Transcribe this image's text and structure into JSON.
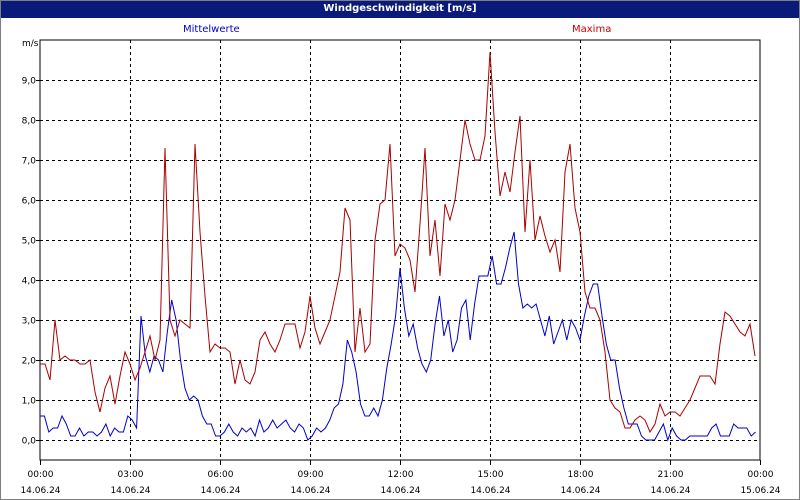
{
  "window": {
    "title": "Windgeschwindigkeit [m/s]"
  },
  "chart_data": {
    "type": "line",
    "title": "Windgeschwindigkeit [m/s]",
    "yunit": "m/s",
    "ylim": [
      -0.5,
      10.0
    ],
    "xlim": [
      0,
      24
    ],
    "grid": true,
    "legend_placement": "top",
    "yticks": [
      "0,0",
      "1,0",
      "2,0",
      "3,0",
      "4,0",
      "5,0",
      "6,0",
      "7,0",
      "8,0",
      "9,0"
    ],
    "xticks": [
      {
        "time": "00:00",
        "date": "14.06.24"
      },
      {
        "time": "03:00",
        "date": "14.06.24"
      },
      {
        "time": "06:00",
        "date": "14.06.24"
      },
      {
        "time": "09:00",
        "date": "14.06.24"
      },
      {
        "time": "12:00",
        "date": "14.06.24"
      },
      {
        "time": "15:00",
        "date": "14.06.24"
      },
      {
        "time": "18:00",
        "date": "14.06.24"
      },
      {
        "time": "21:00",
        "date": "14.06.24"
      },
      {
        "time": "00:00",
        "date": "15.06.24"
      }
    ],
    "x_hours": [
      0.0,
      0.2,
      0.4,
      0.6,
      0.8,
      1.0,
      1.2,
      1.4,
      1.6,
      1.8,
      2.0,
      2.2,
      2.4,
      2.6,
      2.8,
      3.0,
      3.2,
      3.4,
      3.6,
      3.8,
      4.0,
      4.2,
      4.4,
      4.6,
      4.8,
      5.0,
      5.2,
      5.4,
      5.6,
      5.8,
      6.0,
      6.2,
      6.4,
      6.6,
      6.8,
      7.0,
      7.2,
      7.4,
      7.6,
      7.8,
      8.0,
      8.2,
      8.4,
      8.6,
      8.8,
      9.0,
      9.2,
      9.4,
      9.6,
      9.8,
      10.0,
      10.2,
      10.4,
      10.6,
      10.8,
      11.0,
      11.2,
      11.4,
      11.6,
      11.8,
      12.0,
      12.2,
      12.4,
      12.6,
      12.8,
      13.0,
      13.2,
      13.4,
      13.6,
      13.8,
      14.0,
      14.2,
      14.4,
      14.6,
      14.8,
      15.0,
      15.2,
      15.4,
      15.6,
      15.8,
      16.0,
      16.2,
      16.4,
      16.6,
      16.8,
      17.0,
      17.2,
      17.4,
      17.6,
      17.8,
      18.0,
      18.2,
      18.4,
      18.6,
      18.8,
      19.0,
      19.2,
      19.4,
      19.6,
      19.8,
      20.0,
      20.2,
      20.4,
      20.6,
      20.8,
      21.0,
      21.2,
      21.4,
      21.6,
      21.8,
      22.0,
      22.2,
      22.4,
      22.6,
      22.8,
      23.0,
      23.2,
      23.4,
      23.6,
      23.8
    ],
    "series": [
      {
        "name": "Mittelwerte",
        "color": "#0000cc",
        "values": [
          0.6,
          0.6,
          0.2,
          0.3,
          0.3,
          0.6,
          0.4,
          0.1,
          0.1,
          0.3,
          0.1,
          0.2,
          0.2,
          0.1,
          0.2,
          0.4,
          0.1,
          0.3,
          0.2,
          0.2,
          0.6,
          0.5,
          0.3,
          3.1,
          2.1,
          1.7,
          2.1,
          2.0,
          1.7,
          2.7,
          3.5,
          3.0,
          2.0,
          1.3,
          1.0,
          1.1,
          1.0,
          0.6,
          0.4,
          0.4,
          0.1,
          0.1,
          0.2,
          0.4,
          0.2,
          0.1,
          0.3,
          0.2,
          0.3,
          0.1,
          0.5,
          0.2,
          0.3,
          0.5,
          0.3,
          0.4,
          0.5,
          0.3,
          0.2,
          0.4,
          0.3,
          0.0,
          0.1,
          0.3,
          0.2,
          0.3,
          0.5,
          0.8,
          0.9,
          1.4,
          2.5,
          2.2,
          1.7,
          0.9,
          0.6,
          0.6,
          0.8,
          0.6,
          1.0,
          1.8,
          2.4,
          3.1,
          4.3,
          3.3,
          2.6,
          2.9,
          2.3,
          1.9,
          1.7,
          2.0,
          2.9,
          3.6,
          2.6,
          3.0,
          2.2,
          2.5,
          3.3,
          3.5,
          2.5,
          3.4,
          4.1,
          4.1,
          4.1,
          4.6,
          3.9,
          3.9,
          4.3,
          4.8,
          5.2,
          3.9,
          3.3,
          3.4,
          3.3,
          3.4,
          3.0,
          2.6,
          3.1,
          2.4,
          2.7,
          3.0
        ],
        "values_late": [
          2.5,
          3.0,
          2.8,
          2.5,
          3.1,
          3.6,
          3.9,
          3.9,
          3.1,
          2.4,
          2.0,
          2.0,
          1.3,
          0.8,
          0.4,
          0.4,
          0.4,
          0.1,
          0.0,
          0.0,
          0.0,
          0.2,
          0.4,
          0.0,
          0.3,
          0.1,
          0.0,
          0.0,
          0.1,
          0.1,
          0.1,
          0.1,
          0.1,
          0.3,
          0.4,
          0.1,
          0.1,
          0.1,
          0.4,
          0.3,
          0.3,
          0.3,
          0.1,
          0.2
        ]
      },
      {
        "name": "Maxima",
        "color": "#aa0000",
        "values": [
          1.9,
          1.9,
          1.5,
          3.0,
          2.0,
          2.1,
          2.0,
          2.0,
          1.9,
          1.9,
          2.0,
          1.2,
          0.7,
          1.3,
          1.6,
          0.9,
          1.6,
          2.2,
          1.9,
          1.5,
          1.8,
          2.2,
          2.6,
          2.0,
          2.5,
          7.3,
          3.0,
          2.6,
          3.0,
          2.9,
          2.8,
          7.4,
          5.2,
          3.6,
          2.2,
          2.4,
          2.3,
          2.3,
          2.2,
          1.4,
          2.0,
          1.5,
          1.4,
          1.7,
          2.5,
          2.7,
          2.4,
          2.2,
          2.5,
          2.9,
          2.9,
          2.9,
          2.3,
          2.7,
          3.6,
          2.8,
          2.4,
          2.7,
          3.0,
          3.6,
          4.2,
          5.8,
          5.5,
          2.2,
          3.3,
          2.2,
          2.4,
          5.0,
          5.9,
          6.0,
          7.4,
          4.6,
          4.9,
          4.8,
          4.5,
          3.7,
          5.4,
          7.3,
          4.6,
          5.5,
          4.1,
          5.9,
          5.5,
          6.0,
          7.0,
          8.0,
          7.4,
          7.0,
          7.0,
          7.6,
          9.7,
          7.7,
          6.1,
          6.7,
          6.2,
          7.2,
          8.1,
          5.2,
          7.0,
          5.0,
          5.6,
          5.1,
          4.7,
          5.0,
          4.2,
          6.7,
          7.4,
          5.8,
          5.2,
          3.7,
          3.3,
          3.3,
          3.0,
          2.2,
          1.0,
          0.8,
          0.7,
          0.3,
          0.3,
          0.5
        ],
        "values_late": [
          0.6,
          0.5,
          0.2,
          0.4,
          0.9,
          0.6,
          0.7,
          0.7,
          0.6,
          0.8,
          1.0,
          1.3,
          1.6,
          1.6,
          1.6,
          1.4,
          2.4,
          3.2,
          3.1,
          2.9,
          2.7,
          2.6,
          2.9,
          2.1
        ]
      }
    ]
  }
}
